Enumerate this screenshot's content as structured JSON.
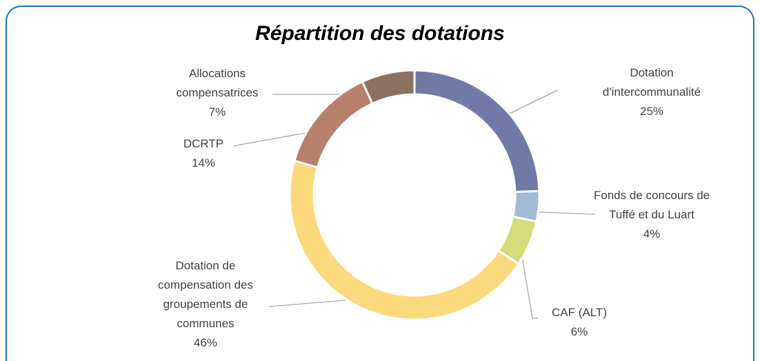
{
  "chart_data": {
    "type": "donut",
    "title": "Répartition des dotations",
    "categories": [
      "Dotation d'intercommunalité",
      "Fonds de concours de Tuffé et du Luart",
      "CAF (ALT)",
      "Dotation de compensation des groupements de communes",
      "DCRTP",
      "Allocations compensatrices"
    ],
    "values": [
      25,
      4,
      6,
      46,
      14,
      7
    ],
    "value_labels": [
      "25%",
      "4%",
      "6%",
      "46%",
      "14%",
      "7%"
    ],
    "colors": [
      "#6f7ba6",
      "#a3bad5",
      "#d4db7b",
      "#fbd97c",
      "#b7806b",
      "#8c7060"
    ]
  }
}
